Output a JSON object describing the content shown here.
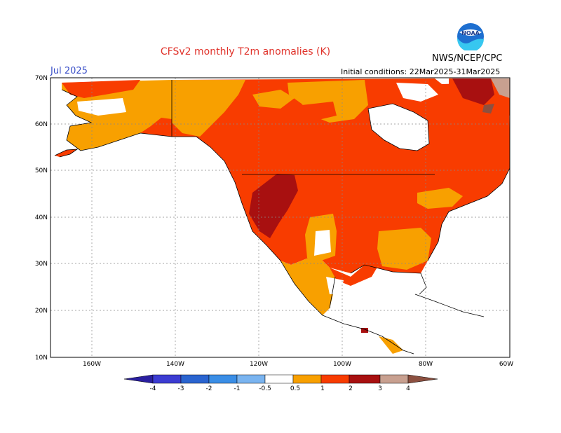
{
  "header": {
    "title": "CFSv2 monthly T2m anomalies (K)",
    "period": "Jul 2025",
    "initial_conditions": "Initial conditions: 22Mar2025-31Mar2025",
    "agency": "NWS/NCEP/CPC",
    "logo_text": "NOAA"
  },
  "map": {
    "lat_labels": [
      "70N",
      "60N",
      "50N",
      "40N",
      "30N",
      "20N",
      "10N"
    ],
    "lon_labels": [
      "160W",
      "140W",
      "120W",
      "100W",
      "80W",
      "60W"
    ],
    "lat_range": [
      10,
      70
    ],
    "lon_range": [
      -170,
      -60
    ]
  },
  "legend": {
    "labels": [
      "-4",
      "-3",
      "-2",
      "-1",
      "-0.5",
      "0.5",
      "1",
      "2",
      "3",
      "4"
    ],
    "colors": {
      "lt_minus4": "#2a1fa0",
      "m4_m3": "#3c3cd2",
      "m3_m2": "#2a64d0",
      "m2_m1": "#3a8ee6",
      "m1_m05": "#7ab4f0",
      "neutral": "#ffffff",
      "p05_p1": "#f8a000",
      "p1_p2": "#f83c00",
      "p2_p3": "#a81010",
      "p3_p4": "#c8a090",
      "gt_p4": "#8c5040"
    }
  }
}
